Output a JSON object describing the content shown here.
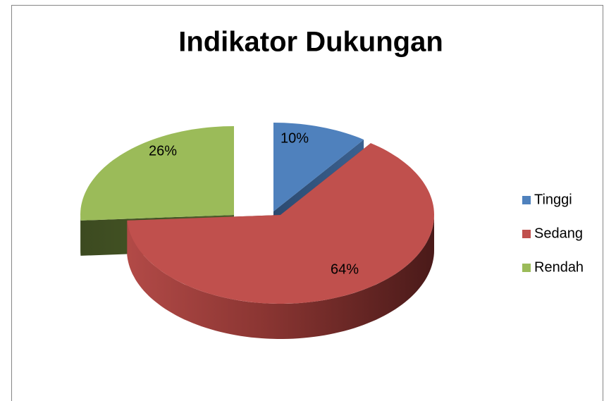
{
  "chart_data": {
    "type": "pie",
    "title": "Indikator Dukungan",
    "categories": [
      "Tinggi",
      "Sedang",
      "Rendah"
    ],
    "values": [
      10,
      64,
      26
    ],
    "value_labels": [
      "10%",
      "64%",
      "26%"
    ],
    "colors": [
      "#4f81bd",
      "#c0504d",
      "#9bbb59"
    ],
    "legend": "right"
  }
}
